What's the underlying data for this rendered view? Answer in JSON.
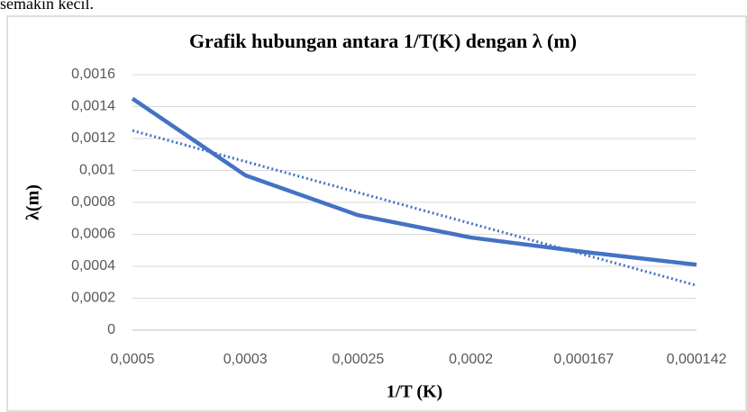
{
  "header_text": "semakin kecil.",
  "chart_data": {
    "type": "line",
    "title": "Grafik hubungan antara 1/T(K)  dengan λ (m)",
    "x_label": "1/T (K)",
    "y_label": "λ(m)",
    "categories": [
      "0,0005",
      "0,0003",
      "0,00025",
      "0,0002",
      "0,000167",
      "0,000142"
    ],
    "series": [
      {
        "color": "#4472c4",
        "values": [
          0.00145,
          0.00097,
          0.00072,
          0.00058,
          0.00049,
          0.00041
        ]
      },
      {
        "color": "#4472c4",
        "dashed": true,
        "values": [
          0.00125,
          0.001056,
          0.000862,
          0.000668,
          0.000474,
          0.00028
        ]
      }
    ],
    "ylim": [
      0,
      0.0016
    ],
    "yticks": [
      0,
      {
        "value": 0.0002,
        "label": "0,0002"
      },
      {
        "value": 0.0004,
        "label": "0,0004"
      },
      {
        "value": 0.0006,
        "label": "0,0006"
      },
      {
        "value": 0.0008,
        "label": "0,0008"
      },
      {
        "value": 0.001,
        "label": "0,001"
      },
      {
        "value": 0.0012,
        "label": "0,0012"
      },
      {
        "value": 0.0014,
        "label": "0,0014"
      },
      {
        "value": 0.0016,
        "label": "0,0016"
      }
    ],
    "grid": true
  }
}
